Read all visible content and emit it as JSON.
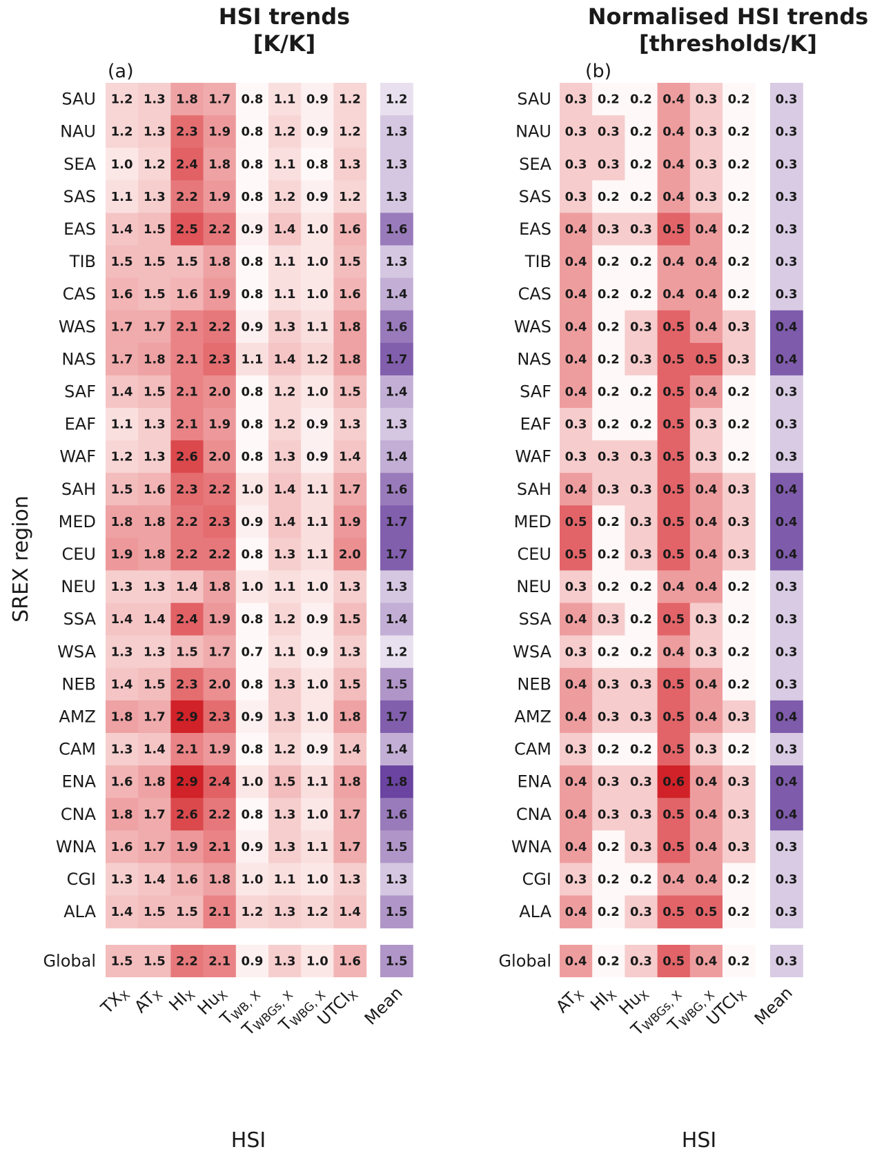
{
  "ylabel": "SREX region",
  "global_label": "Global",
  "chart_data": [
    {
      "type": "heatmap",
      "title": [
        "HSI trends",
        "[K/K]"
      ],
      "panel_label": "(a)",
      "xlabel": "HSI",
      "columns": [
        {
          "main": "TX",
          "sub": "X"
        },
        {
          "main": "AT",
          "sub": "X"
        },
        {
          "main": "HI",
          "sub": "X"
        },
        {
          "main": "Hu",
          "sub": "X"
        },
        {
          "main": "T",
          "sub": "WB, X"
        },
        {
          "main": "T",
          "sub": "WBGs, X"
        },
        {
          "main": "T",
          "sub": "WBG, X"
        },
        {
          "main": "UTCI",
          "sub": "X"
        }
      ],
      "mean_label": "Mean",
      "rows": [
        "SAU",
        "NAU",
        "SEA",
        "SAS",
        "EAS",
        "TIB",
        "CAS",
        "WAS",
        "NAS",
        "SAF",
        "EAF",
        "WAF",
        "SAH",
        "MED",
        "CEU",
        "NEU",
        "SSA",
        "WSA",
        "NEB",
        "AMZ",
        "CAM",
        "ENA",
        "CNA",
        "WNA",
        "CGI",
        "ALA"
      ],
      "values": [
        [
          1.2,
          1.3,
          1.8,
          1.7,
          0.8,
          1.1,
          0.9,
          1.2
        ],
        [
          1.2,
          1.3,
          2.3,
          1.9,
          0.8,
          1.2,
          0.9,
          1.2
        ],
        [
          1.0,
          1.2,
          2.4,
          1.8,
          0.8,
          1.1,
          0.8,
          1.3
        ],
        [
          1.1,
          1.3,
          2.2,
          1.9,
          0.8,
          1.2,
          0.9,
          1.2
        ],
        [
          1.4,
          1.5,
          2.5,
          2.2,
          0.9,
          1.4,
          1.0,
          1.6
        ],
        [
          1.5,
          1.5,
          1.5,
          1.8,
          0.8,
          1.1,
          1.0,
          1.5
        ],
        [
          1.6,
          1.5,
          1.6,
          1.9,
          0.8,
          1.1,
          1.0,
          1.6
        ],
        [
          1.7,
          1.7,
          2.1,
          2.2,
          0.9,
          1.3,
          1.1,
          1.8
        ],
        [
          1.7,
          1.8,
          2.1,
          2.3,
          1.1,
          1.4,
          1.2,
          1.8
        ],
        [
          1.4,
          1.5,
          2.1,
          2.0,
          0.8,
          1.2,
          1.0,
          1.5
        ],
        [
          1.1,
          1.3,
          2.1,
          1.9,
          0.8,
          1.2,
          0.9,
          1.3
        ],
        [
          1.2,
          1.3,
          2.6,
          2.0,
          0.8,
          1.3,
          0.9,
          1.4
        ],
        [
          1.5,
          1.6,
          2.3,
          2.2,
          1.0,
          1.4,
          1.1,
          1.7
        ],
        [
          1.8,
          1.8,
          2.2,
          2.3,
          0.9,
          1.4,
          1.1,
          1.9
        ],
        [
          1.9,
          1.8,
          2.2,
          2.2,
          0.8,
          1.3,
          1.1,
          2.0
        ],
        [
          1.3,
          1.3,
          1.4,
          1.8,
          1.0,
          1.1,
          1.0,
          1.3
        ],
        [
          1.4,
          1.4,
          2.4,
          1.9,
          0.8,
          1.2,
          0.9,
          1.5
        ],
        [
          1.3,
          1.3,
          1.5,
          1.7,
          0.7,
          1.1,
          0.9,
          1.3
        ],
        [
          1.4,
          1.5,
          2.3,
          2.0,
          0.8,
          1.3,
          1.0,
          1.5
        ],
        [
          1.8,
          1.7,
          2.9,
          2.3,
          0.9,
          1.3,
          1.0,
          1.8
        ],
        [
          1.3,
          1.4,
          2.1,
          1.9,
          0.8,
          1.2,
          0.9,
          1.4
        ],
        [
          1.6,
          1.8,
          2.9,
          2.4,
          1.0,
          1.5,
          1.1,
          1.8
        ],
        [
          1.8,
          1.7,
          2.6,
          2.2,
          0.8,
          1.3,
          1.0,
          1.7
        ],
        [
          1.6,
          1.7,
          1.9,
          2.1,
          0.9,
          1.3,
          1.1,
          1.7
        ],
        [
          1.3,
          1.4,
          1.6,
          1.8,
          1.0,
          1.1,
          1.0,
          1.3
        ],
        [
          1.4,
          1.5,
          1.5,
          2.1,
          1.2,
          1.3,
          1.2,
          1.4
        ]
      ],
      "means": [
        1.2,
        1.3,
        1.3,
        1.3,
        1.6,
        1.3,
        1.4,
        1.6,
        1.7,
        1.4,
        1.3,
        1.4,
        1.6,
        1.7,
        1.7,
        1.3,
        1.4,
        1.2,
        1.5,
        1.7,
        1.4,
        1.8,
        1.6,
        1.5,
        1.3,
        1.5
      ],
      "global_values": [
        1.5,
        1.5,
        2.2,
        2.1,
        0.9,
        1.3,
        1.0,
        1.6
      ],
      "global_mean": 1.5,
      "color_range": [
        0.8,
        2.9
      ],
      "mean_color_range": [
        1.2,
        1.8
      ]
    },
    {
      "type": "heatmap",
      "title": [
        "Normalised HSI trends",
        "[thresholds/K]"
      ],
      "panel_label": "(b)",
      "xlabel": "HSI",
      "columns": [
        {
          "main": "AT",
          "sub": "X"
        },
        {
          "main": "HI",
          "sub": "X"
        },
        {
          "main": "Hu",
          "sub": "X"
        },
        {
          "main": "T",
          "sub": "WBGs, X"
        },
        {
          "main": "T",
          "sub": "WBG, X"
        },
        {
          "main": "UTCI",
          "sub": "X"
        }
      ],
      "mean_label": "Mean",
      "rows": [
        "SAU",
        "NAU",
        "SEA",
        "SAS",
        "EAS",
        "TIB",
        "CAS",
        "WAS",
        "NAS",
        "SAF",
        "EAF",
        "WAF",
        "SAH",
        "MED",
        "CEU",
        "NEU",
        "SSA",
        "WSA",
        "NEB",
        "AMZ",
        "CAM",
        "ENA",
        "CNA",
        "WNA",
        "CGI",
        "ALA"
      ],
      "values": [
        [
          0.3,
          0.2,
          0.2,
          0.4,
          0.3,
          0.2
        ],
        [
          0.3,
          0.3,
          0.2,
          0.4,
          0.3,
          0.2
        ],
        [
          0.3,
          0.3,
          0.2,
          0.4,
          0.3,
          0.2
        ],
        [
          0.3,
          0.2,
          0.2,
          0.4,
          0.3,
          0.2
        ],
        [
          0.4,
          0.3,
          0.3,
          0.5,
          0.4,
          0.2
        ],
        [
          0.4,
          0.2,
          0.2,
          0.4,
          0.4,
          0.2
        ],
        [
          0.4,
          0.2,
          0.2,
          0.4,
          0.4,
          0.2
        ],
        [
          0.4,
          0.2,
          0.3,
          0.5,
          0.4,
          0.3
        ],
        [
          0.4,
          0.2,
          0.3,
          0.5,
          0.5,
          0.3
        ],
        [
          0.4,
          0.2,
          0.2,
          0.5,
          0.4,
          0.2
        ],
        [
          0.3,
          0.2,
          0.2,
          0.5,
          0.3,
          0.2
        ],
        [
          0.3,
          0.3,
          0.3,
          0.5,
          0.3,
          0.2
        ],
        [
          0.4,
          0.3,
          0.3,
          0.5,
          0.4,
          0.3
        ],
        [
          0.5,
          0.2,
          0.3,
          0.5,
          0.4,
          0.3
        ],
        [
          0.5,
          0.2,
          0.3,
          0.5,
          0.4,
          0.3
        ],
        [
          0.3,
          0.2,
          0.2,
          0.4,
          0.4,
          0.2
        ],
        [
          0.4,
          0.3,
          0.2,
          0.5,
          0.3,
          0.2
        ],
        [
          0.3,
          0.2,
          0.2,
          0.4,
          0.3,
          0.2
        ],
        [
          0.4,
          0.3,
          0.3,
          0.5,
          0.4,
          0.2
        ],
        [
          0.4,
          0.3,
          0.3,
          0.5,
          0.4,
          0.3
        ],
        [
          0.3,
          0.2,
          0.2,
          0.5,
          0.3,
          0.2
        ],
        [
          0.4,
          0.3,
          0.3,
          0.6,
          0.4,
          0.3
        ],
        [
          0.4,
          0.3,
          0.3,
          0.5,
          0.4,
          0.3
        ],
        [
          0.4,
          0.2,
          0.3,
          0.5,
          0.4,
          0.3
        ],
        [
          0.3,
          0.2,
          0.2,
          0.4,
          0.4,
          0.2
        ],
        [
          0.4,
          0.2,
          0.3,
          0.5,
          0.5,
          0.2
        ]
      ],
      "means": [
        0.3,
        0.3,
        0.3,
        0.3,
        0.3,
        0.3,
        0.3,
        0.4,
        0.4,
        0.3,
        0.3,
        0.3,
        0.4,
        0.4,
        0.4,
        0.3,
        0.3,
        0.3,
        0.3,
        0.4,
        0.3,
        0.4,
        0.4,
        0.3,
        0.3,
        0.3
      ],
      "global_values": [
        0.4,
        0.2,
        0.3,
        0.5,
        0.4,
        0.2
      ],
      "global_mean": 0.3,
      "color_range": [
        0.2,
        0.6
      ],
      "mean_color_range": [
        0.28,
        0.42
      ]
    }
  ]
}
